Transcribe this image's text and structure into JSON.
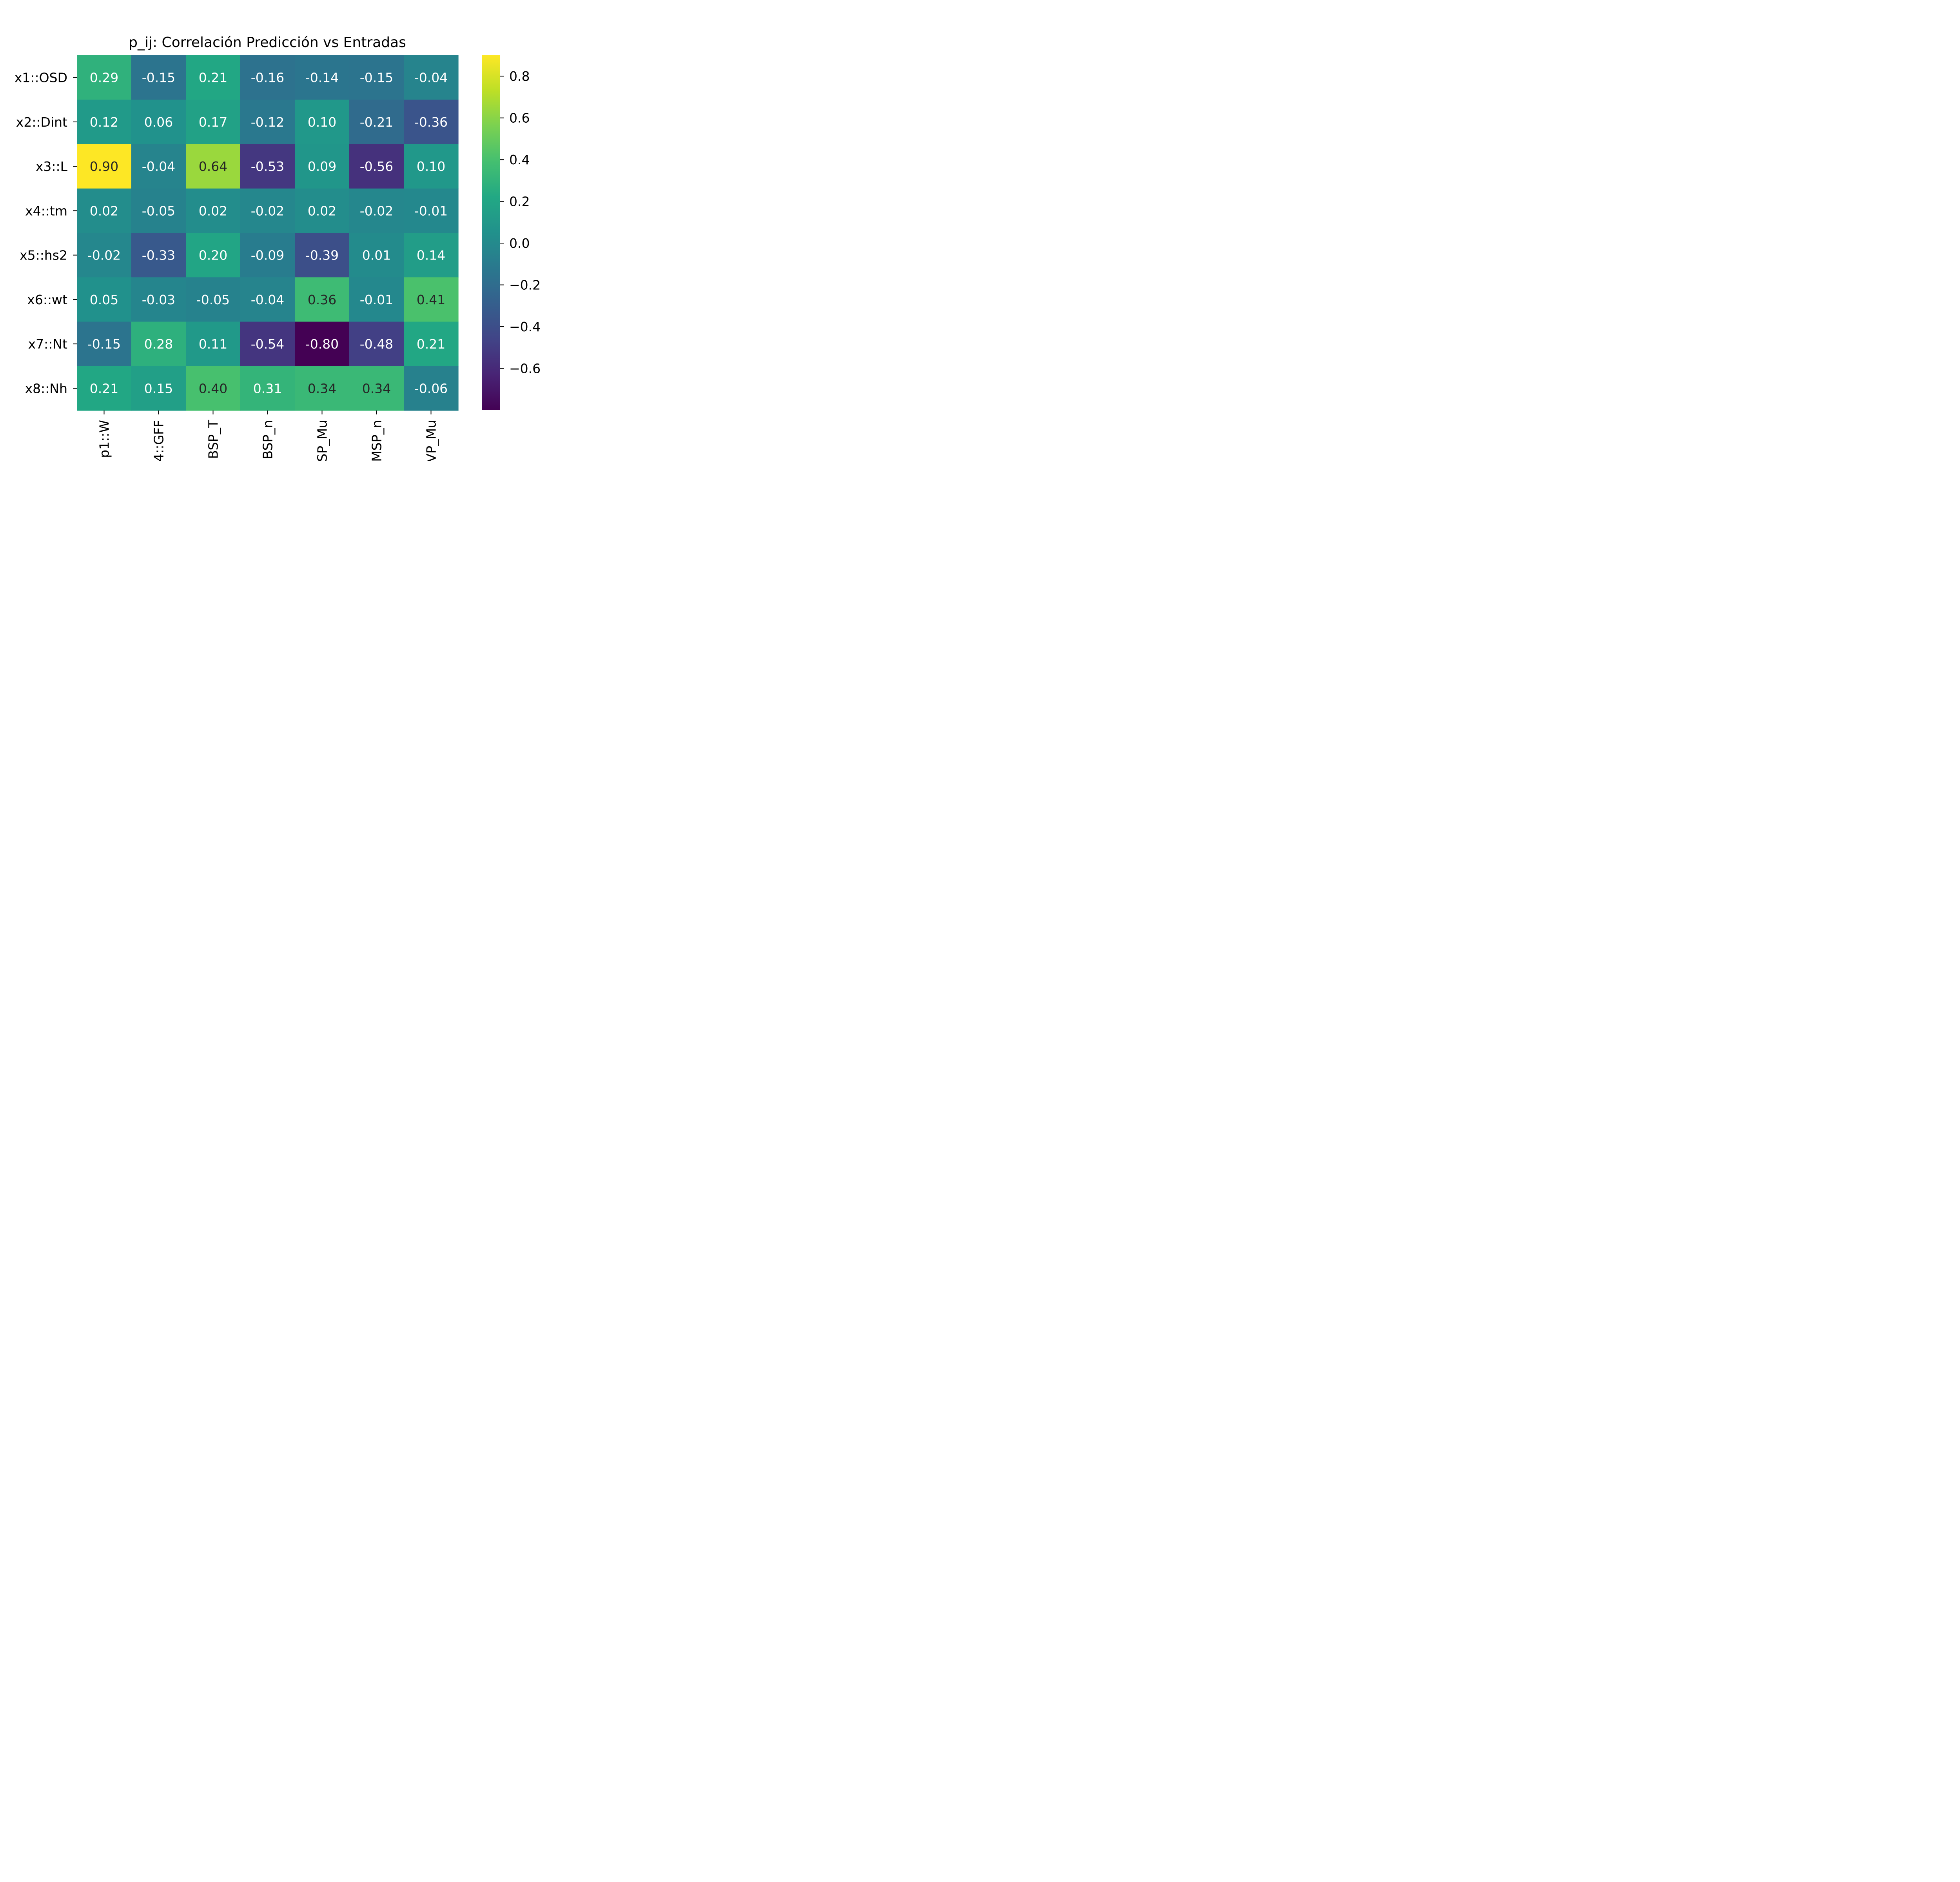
{
  "chart_data": {
    "type": "heatmap",
    "title": "p_ij: Correlación Predicción vs Entradas",
    "xlabel": "",
    "ylabel": "",
    "row_labels": [
      "x1::OSD",
      "x2::Dint",
      "x3::L",
      "x4::tm",
      "x5::hs2",
      "x6::wt",
      "x7::Nt",
      "x8::Nh"
    ],
    "col_labels": [
      "p1::W",
      "4::GFF",
      "BSP_T",
      "BSP_n",
      "SP_Mu",
      "MSP_n",
      "VP_Mu"
    ],
    "values": [
      [
        0.29,
        -0.15,
        0.21,
        -0.16,
        -0.14,
        -0.15,
        -0.04
      ],
      [
        0.12,
        0.06,
        0.17,
        -0.12,
        0.1,
        -0.21,
        -0.36
      ],
      [
        0.9,
        -0.04,
        0.64,
        -0.53,
        0.09,
        -0.56,
        0.1
      ],
      [
        0.02,
        -0.05,
        0.02,
        -0.02,
        0.02,
        -0.02,
        -0.01
      ],
      [
        -0.02,
        -0.33,
        0.2,
        -0.09,
        -0.39,
        0.01,
        0.14
      ],
      [
        0.05,
        -0.03,
        -0.05,
        -0.04,
        0.36,
        -0.01,
        0.41
      ],
      [
        -0.15,
        0.28,
        0.11,
        -0.54,
        -0.8,
        -0.48,
        0.21
      ],
      [
        0.21,
        0.15,
        0.4,
        0.31,
        0.34,
        0.34,
        -0.06
      ]
    ],
    "value_labels": [
      [
        "0.29",
        "-0.15",
        "0.21",
        "-0.16",
        "-0.14",
        "-0.15",
        "-0.04"
      ],
      [
        "0.12",
        "0.06",
        "0.17",
        "-0.12",
        "0.10",
        "-0.21",
        "-0.36"
      ],
      [
        "0.90",
        "-0.04",
        "0.64",
        "-0.53",
        "0.09",
        "-0.56",
        "0.10"
      ],
      [
        "0.02",
        "-0.05",
        "0.02",
        "-0.02",
        "0.02",
        "-0.02",
        "-0.01"
      ],
      [
        "-0.02",
        "-0.33",
        "0.20",
        "-0.09",
        "-0.39",
        "0.01",
        "0.14"
      ],
      [
        "0.05",
        "-0.03",
        "-0.05",
        "-0.04",
        "0.36",
        "-0.01",
        "0.41"
      ],
      [
        "-0.15",
        "0.28",
        "0.11",
        "-0.54",
        "-0.80",
        "-0.48",
        "0.21"
      ],
      [
        "0.21",
        "0.15",
        "0.40",
        "0.31",
        "0.34",
        "0.34",
        "-0.06"
      ]
    ],
    "colormap": "viridis",
    "vmin": -0.8,
    "vmax": 0.9,
    "colorbar_ticks": [
      0.8,
      0.6,
      0.4,
      0.2,
      0.0,
      -0.2,
      -0.4,
      -0.6
    ],
    "colorbar_tick_labels": [
      "0.8",
      "0.6",
      "0.4",
      "0.2",
      "0.0",
      "−0.2",
      "−0.4",
      "−0.6"
    ],
    "grid": false,
    "legend": "colorbar-right"
  }
}
